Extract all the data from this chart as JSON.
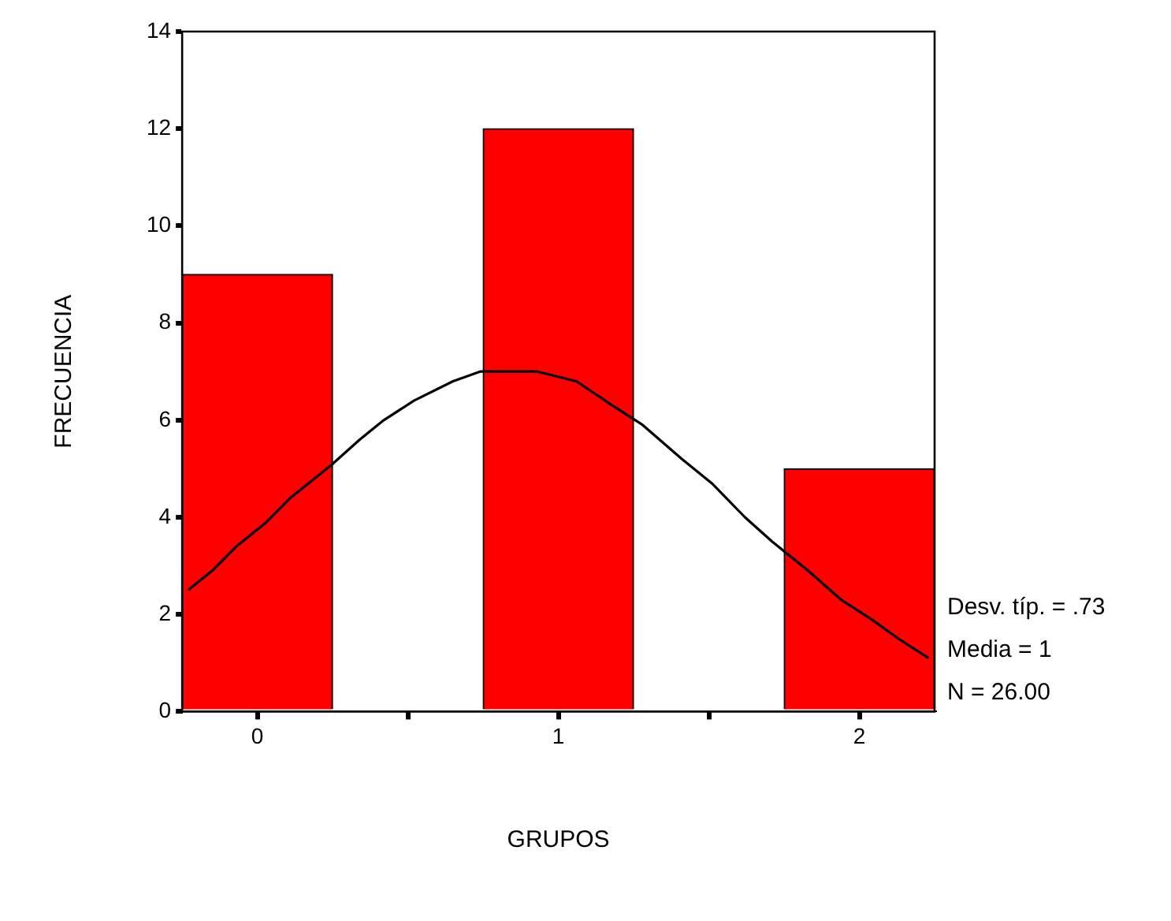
{
  "chart_data": {
    "type": "histogram",
    "xlabel": "GRUPOS",
    "ylabel": "FRECUENCIA",
    "bins": [
      -0.25,
      0.25,
      0.75,
      1.25,
      1.75,
      2.25
    ],
    "values": [
      9,
      0,
      12,
      0,
      5
    ],
    "color": "#ff0000",
    "xlim": [
      -0.25,
      2.25
    ],
    "xticks": [
      0,
      {
        "value": 0.5,
        "label": null
      },
      1,
      {
        "value": 1.5,
        "label": null
      },
      2
    ],
    "ylim": [
      0,
      14
    ],
    "yticks": [
      0,
      2,
      4,
      6,
      8,
      10,
      12,
      14
    ],
    "series": [
      {
        "type": "line",
        "color": "#000000",
        "marker": "none",
        "line_style": "solid",
        "x": [
          -0.23,
          -0.15,
          -0.07,
          0.03,
          0.11,
          0.17,
          0.25,
          0.34,
          0.42,
          0.52,
          0.65,
          0.74,
          0.93,
          1.06,
          1.18,
          1.28,
          1.41,
          1.51,
          1.62,
          1.71,
          1.83,
          1.94,
          2.04,
          2.13,
          2.23
        ],
        "values": [
          2.5,
          2.9,
          3.4,
          3.9,
          4.4,
          4.7,
          5.1,
          5.6,
          6.0,
          6.4,
          6.8,
          7.0,
          7.0,
          6.8,
          6.3,
          5.9,
          5.2,
          4.7,
          4.0,
          3.5,
          2.9,
          2.3,
          1.9,
          1.5,
          1.1
        ]
      }
    ],
    "annotations": [
      "Desv. típ. = .73",
      "Media = 1",
      "N = 26.00"
    ]
  }
}
